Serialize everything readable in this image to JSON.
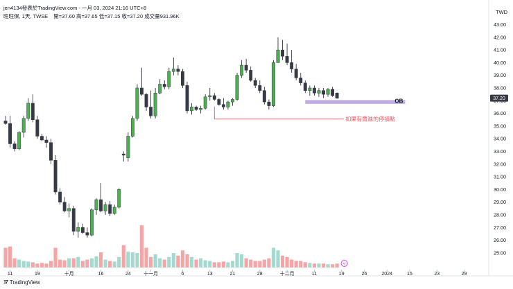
{
  "header": {
    "author_line": "jen4134發表於TradingView.com - 一月 03, 2024 21:16 UTC+8",
    "symbol": "旺旺保, 1天, TWSE",
    "ohlc": "開=37.60  高=37.65  低=37.15  收=37.20  成交量931.96K"
  },
  "currency_label": "TWD",
  "branding": {
    "logo_text": "TradingView"
  },
  "chart_data": {
    "type": "candlestick",
    "y_ticks": [
      "25.00",
      "26.00",
      "27.00",
      "28.00",
      "29.00",
      "30.00",
      "31.00",
      "32.00",
      "33.00",
      "34.00",
      "35.00",
      "36.00",
      "37.00",
      "38.00",
      "39.00",
      "40.00",
      "41.00",
      "42.00",
      "43.00"
    ],
    "ylim": [
      24.5,
      43.3
    ],
    "x_ticks": [
      {
        "i": 1,
        "label": "11"
      },
      {
        "i": 7,
        "label": "19"
      },
      {
        "i": 14,
        "label": "十月"
      },
      {
        "i": 21,
        "label": "16"
      },
      {
        "i": 27,
        "label": "24"
      },
      {
        "i": 32,
        "label": "十一月"
      },
      {
        "i": 39,
        "label": "6"
      },
      {
        "i": 45,
        "label": "13"
      },
      {
        "i": 50,
        "label": "21"
      },
      {
        "i": 56,
        "label": "28"
      },
      {
        "i": 62,
        "label": "十二月"
      },
      {
        "i": 68,
        "label": "11"
      },
      {
        "i": 74,
        "label": "19"
      },
      {
        "i": 79,
        "label": "26"
      },
      {
        "i": 84,
        "label": "2024"
      },
      {
        "i": 89,
        "label": "15"
      },
      {
        "i": 95,
        "label": "23"
      },
      {
        "i": 101,
        "label": "29"
      }
    ],
    "last_price": "37.20",
    "annotations": [
      {
        "type": "zone",
        "label": "OB",
        "from": 36.75,
        "to": 37.05,
        "start_i": 66,
        "end_i": 88,
        "color": "#b39ddb"
      },
      {
        "type": "stop_line",
        "label": "如果有賣進的停損點",
        "price": 35.55,
        "start_i": 46,
        "end_i": 84,
        "color": "#f7525f"
      }
    ],
    "candles": [
      [
        35.4,
        35.8,
        35.1,
        35.2,
        0.3
      ],
      [
        35.2,
        35.8,
        33.3,
        33.6,
        0.32
      ],
      [
        33.6,
        33.8,
        33.0,
        33.2,
        0.14
      ],
      [
        33.2,
        34.6,
        33.1,
        34.5,
        0.12
      ],
      [
        34.5,
        35.8,
        34.1,
        35.6,
        0.1
      ],
      [
        35.6,
        37.2,
        35.4,
        36.8,
        0.09
      ],
      [
        36.8,
        37.5,
        35.3,
        35.5,
        0.08
      ],
      [
        35.5,
        35.8,
        34.0,
        34.2,
        0.06
      ],
      [
        34.2,
        34.4,
        33.8,
        33.9,
        0.07
      ],
      [
        33.9,
        34.2,
        33.3,
        33.7,
        0.06
      ],
      [
        33.7,
        34.0,
        32.0,
        32.3,
        0.1
      ],
      [
        32.3,
        32.7,
        29.6,
        29.8,
        0.3
      ],
      [
        29.8,
        30.1,
        28.8,
        29.0,
        0.12
      ],
      [
        29.0,
        29.4,
        28.2,
        28.3,
        0.11
      ],
      [
        28.3,
        28.9,
        27.8,
        28.5,
        0.14
      ],
      [
        28.5,
        28.7,
        26.4,
        26.7,
        0.14
      ],
      [
        26.7,
        27.4,
        26.2,
        27.0,
        0.16
      ],
      [
        27.0,
        27.3,
        26.5,
        26.6,
        0.1
      ],
      [
        26.6,
        27.0,
        26.2,
        26.4,
        0.12
      ],
      [
        26.4,
        28.5,
        26.3,
        28.4,
        0.14
      ],
      [
        28.4,
        29.3,
        28.0,
        29.2,
        0.17
      ],
      [
        29.2,
        30.5,
        28.2,
        28.3,
        0.23
      ],
      [
        28.3,
        29.0,
        28.0,
        28.8,
        0.12
      ],
      [
        28.8,
        29.1,
        27.9,
        28.1,
        0.1
      ],
      [
        28.1,
        28.8,
        28.0,
        28.6,
        0.09
      ],
      [
        28.6,
        30.1,
        28.5,
        30.0,
        0.16
      ],
      [
        32.8,
        33.0,
        32.2,
        32.7,
        0.34
      ],
      [
        32.5,
        34.5,
        32.2,
        34.2,
        0.24
      ],
      [
        34.2,
        35.8,
        34.1,
        35.6,
        0.23
      ],
      [
        35.6,
        38.3,
        35.4,
        38.0,
        0.22
      ],
      [
        38.0,
        39.6,
        37.4,
        37.5,
        0.64
      ],
      [
        37.5,
        37.6,
        36.2,
        36.5,
        0.3
      ],
      [
        36.5,
        37.8,
        35.6,
        35.8,
        0.16
      ],
      [
        35.8,
        38.0,
        35.6,
        37.6,
        0.2
      ],
      [
        37.6,
        38.7,
        37.5,
        38.3,
        0.14
      ],
      [
        38.3,
        38.6,
        37.9,
        38.1,
        0.12
      ],
      [
        38.1,
        39.6,
        37.9,
        39.3,
        0.16
      ],
      [
        39.3,
        40.4,
        39.0,
        39.5,
        0.22
      ],
      [
        39.5,
        39.8,
        39.0,
        39.3,
        0.18
      ],
      [
        39.3,
        39.5,
        38.0,
        38.2,
        0.26
      ],
      [
        38.2,
        38.5,
        36.0,
        36.2,
        0.2
      ],
      [
        36.2,
        36.8,
        35.9,
        36.5,
        0.16
      ],
      [
        36.5,
        36.6,
        36.2,
        36.3,
        0.12
      ],
      [
        36.3,
        36.6,
        36.0,
        36.4,
        0.14
      ],
      [
        36.4,
        37.5,
        36.3,
        37.3,
        0.11
      ],
      [
        37.3,
        38.0,
        37.0,
        37.4,
        0.1
      ],
      [
        37.4,
        37.6,
        37.0,
        37.1,
        0.08
      ],
      [
        37.1,
        37.2,
        36.6,
        36.7,
        0.08
      ],
      [
        36.7,
        37.2,
        36.3,
        36.5,
        0.09
      ],
      [
        36.5,
        37.0,
        36.3,
        36.9,
        0.08
      ],
      [
        36.9,
        37.2,
        36.6,
        37.1,
        0.1
      ],
      [
        37.1,
        39.2,
        37.0,
        39.0,
        0.22
      ],
      [
        39.0,
        40.2,
        38.8,
        39.8,
        0.2
      ],
      [
        39.8,
        40.3,
        39.2,
        39.4,
        0.14
      ],
      [
        39.4,
        39.7,
        38.5,
        38.6,
        0.12
      ],
      [
        38.6,
        38.8,
        38.0,
        38.2,
        0.1
      ],
      [
        38.2,
        38.6,
        37.6,
        37.8,
        0.1
      ],
      [
        37.8,
        38.1,
        36.7,
        36.9,
        0.12
      ],
      [
        36.9,
        37.1,
        36.3,
        36.6,
        0.14
      ],
      [
        36.6,
        40.2,
        36.5,
        40.0,
        0.3
      ],
      [
        40.0,
        42.0,
        40.0,
        41.0,
        0.26
      ],
      [
        41.0,
        41.8,
        40.2,
        40.5,
        0.18
      ],
      [
        40.5,
        41.5,
        39.8,
        40.0,
        0.16
      ],
      [
        40.0,
        41.0,
        39.2,
        39.5,
        0.12
      ],
      [
        39.5,
        39.9,
        38.6,
        38.8,
        0.1
      ],
      [
        38.8,
        39.2,
        38.2,
        38.4,
        0.1
      ],
      [
        38.4,
        38.6,
        37.6,
        37.8,
        0.08
      ],
      [
        37.8,
        38.2,
        37.4,
        38.0,
        0.07
      ],
      [
        38.0,
        38.2,
        37.4,
        37.6,
        0.06
      ],
      [
        37.6,
        38.0,
        37.3,
        37.8,
        0.06
      ],
      [
        37.8,
        38.0,
        37.2,
        37.5,
        0.06
      ],
      [
        37.5,
        38.0,
        37.3,
        37.9,
        0.05
      ],
      [
        37.9,
        38.1,
        37.3,
        37.4,
        0.05
      ],
      [
        37.6,
        37.65,
        37.15,
        37.2,
        0.06
      ]
    ]
  }
}
